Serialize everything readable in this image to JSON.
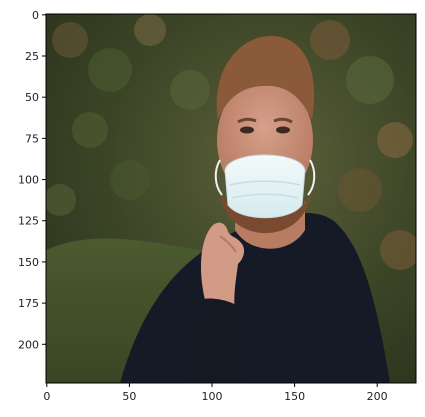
{
  "figure": {
    "kind": "image-plot",
    "subject": "photo of a bearded man wearing a white face mask, touching his chin, dark sweater, green hedge background",
    "image_size": {
      "width": 224,
      "height": 224
    },
    "axes": {
      "x_ticks": [
        0,
        50,
        100,
        150,
        200
      ],
      "y_ticks": [
        0,
        25,
        50,
        75,
        100,
        125,
        150,
        175,
        200
      ],
      "x_labels": [
        "0",
        "50",
        "100",
        "150",
        "200"
      ],
      "y_labels": [
        "0",
        "25",
        "50",
        "75",
        "100",
        "125",
        "150",
        "175",
        "200"
      ]
    },
    "colors": {
      "hedge_dark": "#2f3a1e",
      "hedge_mid": "#56603a",
      "hedge_warm": "#7a5a3a",
      "grass": "#4a5a2a",
      "sweater": "#151b26",
      "skin": "#c98f76",
      "hair": "#8a5a3a",
      "mask": "#e8f3f5",
      "frame": "#000000"
    }
  }
}
